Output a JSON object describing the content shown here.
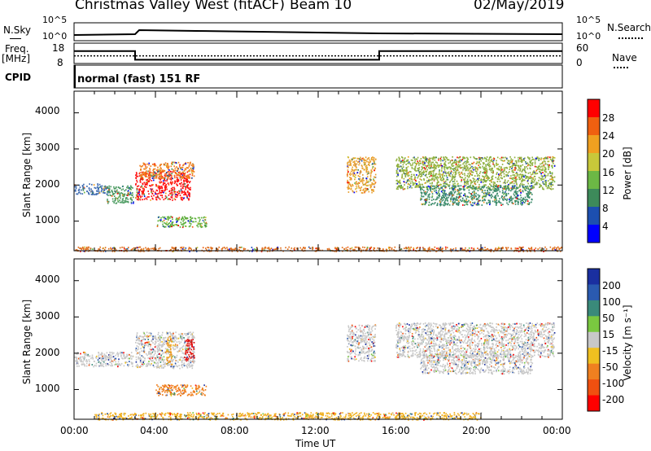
{
  "header": {
    "station": "Christmas Valley West (fitACF)",
    "beam": "Beam 10",
    "date": "02/May/2019"
  },
  "top_panels": {
    "nsky_label": "N.Sky",
    "nsearch_label": "N.Search",
    "noise_ticks": [
      "10^5",
      "10^0"
    ],
    "freq_label": "Freq.",
    "freq_unit": "[MHz]",
    "freq_ticks": [
      "18",
      "8"
    ],
    "nave_ticks": [
      "60",
      "0"
    ],
    "nave_label": "Nave",
    "cpid_label": "CPID",
    "cpid_value": "normal (fast) 151 RF",
    "freq_series": {
      "x": [
        0,
        3,
        3,
        15,
        15,
        24
      ],
      "y": [
        14.2,
        14.2,
        9.6,
        9.6,
        14.2,
        14.2
      ]
    },
    "nave_series": {
      "x": [
        0,
        24
      ],
      "y": [
        22,
        22
      ]
    }
  },
  "chart_data": [
    {
      "type": "heatmap",
      "parameter": "power",
      "ylabel": "Slant Range [km]",
      "yticks": [
        "1000",
        "2000",
        "3000",
        "4000"
      ],
      "ylim": [
        180,
        4600
      ],
      "xlim": [
        0,
        24
      ],
      "colorbar": {
        "label": "Power [dB]",
        "ticks": [
          "4",
          "8",
          "12",
          "16",
          "20",
          "24",
          "28"
        ],
        "colors": [
          "#0000ff",
          "#1c4fb0",
          "#3d8a5a",
          "#6cb845",
          "#c8c83a",
          "#f0a020",
          "#f06010",
          "#ff0000"
        ]
      },
      "regions": [
        {
          "t0": 0.0,
          "t1": 1.7,
          "r0": 1750,
          "r1": 2050,
          "color": "#3d6ab0"
        },
        {
          "t0": 1.6,
          "t1": 2.9,
          "r0": 1500,
          "r1": 2000,
          "color": "#4a9a60"
        },
        {
          "t0": 3.0,
          "t1": 5.7,
          "r0": 1600,
          "r1": 2400,
          "color": "#ff1010"
        },
        {
          "t0": 3.2,
          "t1": 5.9,
          "r0": 2200,
          "r1": 2650,
          "color": "#f08020"
        },
        {
          "t0": 4.0,
          "t1": 6.5,
          "r0": 850,
          "r1": 1150,
          "color": "#60b040"
        },
        {
          "t0": 13.4,
          "t1": 14.8,
          "r0": 1800,
          "r1": 2800,
          "color": "#e8a030"
        },
        {
          "t0": 15.8,
          "t1": 23.6,
          "r0": 1900,
          "r1": 2800,
          "color": "#90b040"
        },
        {
          "t0": 17.0,
          "t1": 22.5,
          "r0": 1450,
          "r1": 2000,
          "color": "#3a8a6a"
        },
        {
          "t0": 0.0,
          "t1": 24.0,
          "r0": 180,
          "r1": 300,
          "color": "#e07020"
        }
      ]
    },
    {
      "type": "heatmap",
      "parameter": "velocity",
      "ylabel": "Slant Range [km]",
      "yticks": [
        "1000",
        "2000",
        "3000",
        "4000"
      ],
      "ylim": [
        180,
        4600
      ],
      "xlim": [
        0,
        24
      ],
      "xlabel": "Time UT",
      "xticks": [
        "00:00",
        "04:00",
        "08:00",
        "12:00",
        "16:00",
        "20:00",
        "00:00"
      ],
      "colorbar": {
        "label": "Velocity [m s⁻¹]",
        "ticks": [
          "200",
          "100",
          "50",
          "15",
          "-15",
          "-50",
          "-100",
          "-200"
        ],
        "colors": [
          "#1a2fa0",
          "#2a5ab0",
          "#3a8a7a",
          "#7ac840",
          "#c8c8c8",
          "#f0c020",
          "#f08020",
          "#f05010",
          "#ff0000"
        ]
      },
      "regions": [
        {
          "t0": 0.0,
          "t1": 2.9,
          "r0": 1650,
          "r1": 2050,
          "color": "#c8c8c8"
        },
        {
          "t0": 3.0,
          "t1": 5.9,
          "r0": 1600,
          "r1": 2600,
          "color": "#c8c8c8"
        },
        {
          "t0": 4.5,
          "t1": 4.8,
          "r0": 1700,
          "r1": 2500,
          "color": "#f0a020"
        },
        {
          "t0": 5.4,
          "t1": 5.9,
          "r0": 1800,
          "r1": 2400,
          "color": "#e01010"
        },
        {
          "t0": 4.0,
          "t1": 6.5,
          "r0": 850,
          "r1": 1150,
          "color": "#f08020"
        },
        {
          "t0": 13.4,
          "t1": 14.8,
          "r0": 1800,
          "r1": 2800,
          "color": "#c8c8c8"
        },
        {
          "t0": 15.8,
          "t1": 23.6,
          "r0": 1900,
          "r1": 2850,
          "color": "#c8c8c8"
        },
        {
          "t0": 17.0,
          "t1": 22.5,
          "r0": 1450,
          "r1": 2000,
          "color": "#c8c8c8"
        },
        {
          "t0": 1.0,
          "t1": 20.0,
          "r0": 180,
          "r1": 380,
          "color": "#f0b020"
        }
      ]
    }
  ]
}
